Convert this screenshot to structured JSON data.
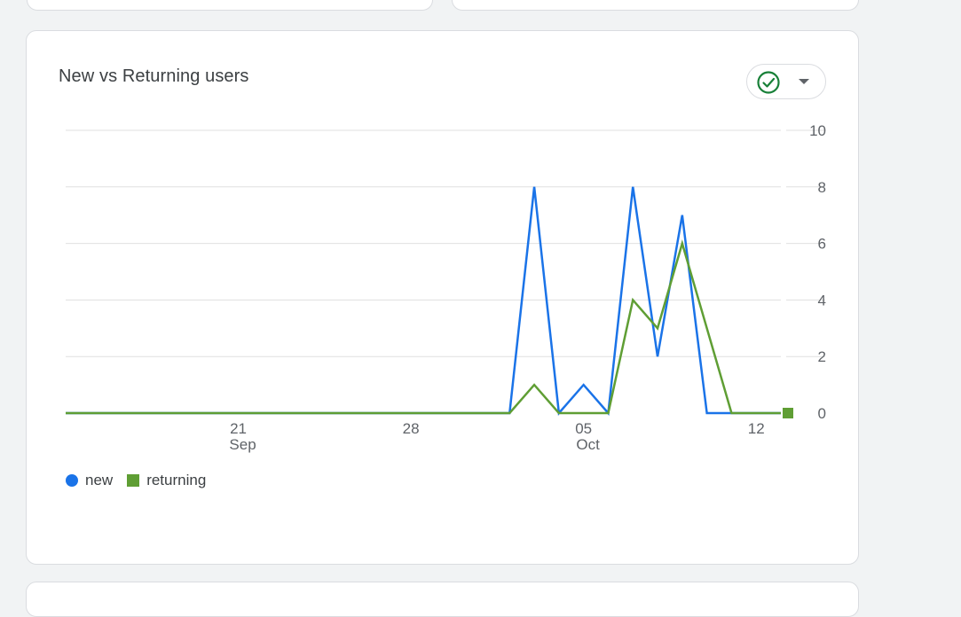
{
  "card": {
    "title": "New vs Returning users"
  },
  "controls": {
    "status_icon": "check-circle-icon",
    "dropdown_icon": "caret-down-icon"
  },
  "colors": {
    "new": "#1a73e8",
    "returning": "#5f9e34",
    "grid": "#e0e0e0",
    "check": "#188038"
  },
  "chart_data": {
    "type": "line",
    "title": "New vs Returning users",
    "x": [
      "2023-09-14",
      "2023-09-15",
      "2023-09-16",
      "2023-09-17",
      "2023-09-18",
      "2023-09-19",
      "2023-09-20",
      "2023-09-21",
      "2023-09-22",
      "2023-09-23",
      "2023-09-24",
      "2023-09-25",
      "2023-09-26",
      "2023-09-27",
      "2023-09-28",
      "2023-09-29",
      "2023-09-30",
      "2023-10-01",
      "2023-10-02",
      "2023-10-03",
      "2023-10-04",
      "2023-10-05",
      "2023-10-06",
      "2023-10-07",
      "2023-10-08",
      "2023-10-09",
      "2023-10-10",
      "2023-10-11",
      "2023-10-12",
      "2023-10-13"
    ],
    "series": [
      {
        "name": "new",
        "values": [
          0,
          0,
          0,
          0,
          0,
          0,
          0,
          0,
          0,
          0,
          0,
          0,
          0,
          0,
          0,
          0,
          0,
          0,
          0,
          8,
          0,
          1,
          0,
          8,
          2,
          7,
          0,
          0,
          0,
          0
        ]
      },
      {
        "name": "returning",
        "values": [
          0,
          0,
          0,
          0,
          0,
          0,
          0,
          0,
          0,
          0,
          0,
          0,
          0,
          0,
          0,
          0,
          0,
          0,
          0,
          1,
          0,
          0,
          0,
          4,
          3,
          6,
          3,
          0,
          0,
          0
        ]
      }
    ],
    "x_ticks": [
      {
        "date": "2023-09-21",
        "label": "21",
        "sublabel": "Sep"
      },
      {
        "date": "2023-09-28",
        "label": "28",
        "sublabel": ""
      },
      {
        "date": "2023-10-05",
        "label": "05",
        "sublabel": "Oct"
      },
      {
        "date": "2023-10-12",
        "label": "12",
        "sublabel": ""
      }
    ],
    "y_ticks": [
      "0",
      "2",
      "4",
      "6",
      "8",
      "10"
    ],
    "ylim": [
      0,
      10
    ],
    "y_axis_side": "right",
    "grid": true,
    "legend": "bottom-left",
    "xlabel": "",
    "ylabel": ""
  }
}
